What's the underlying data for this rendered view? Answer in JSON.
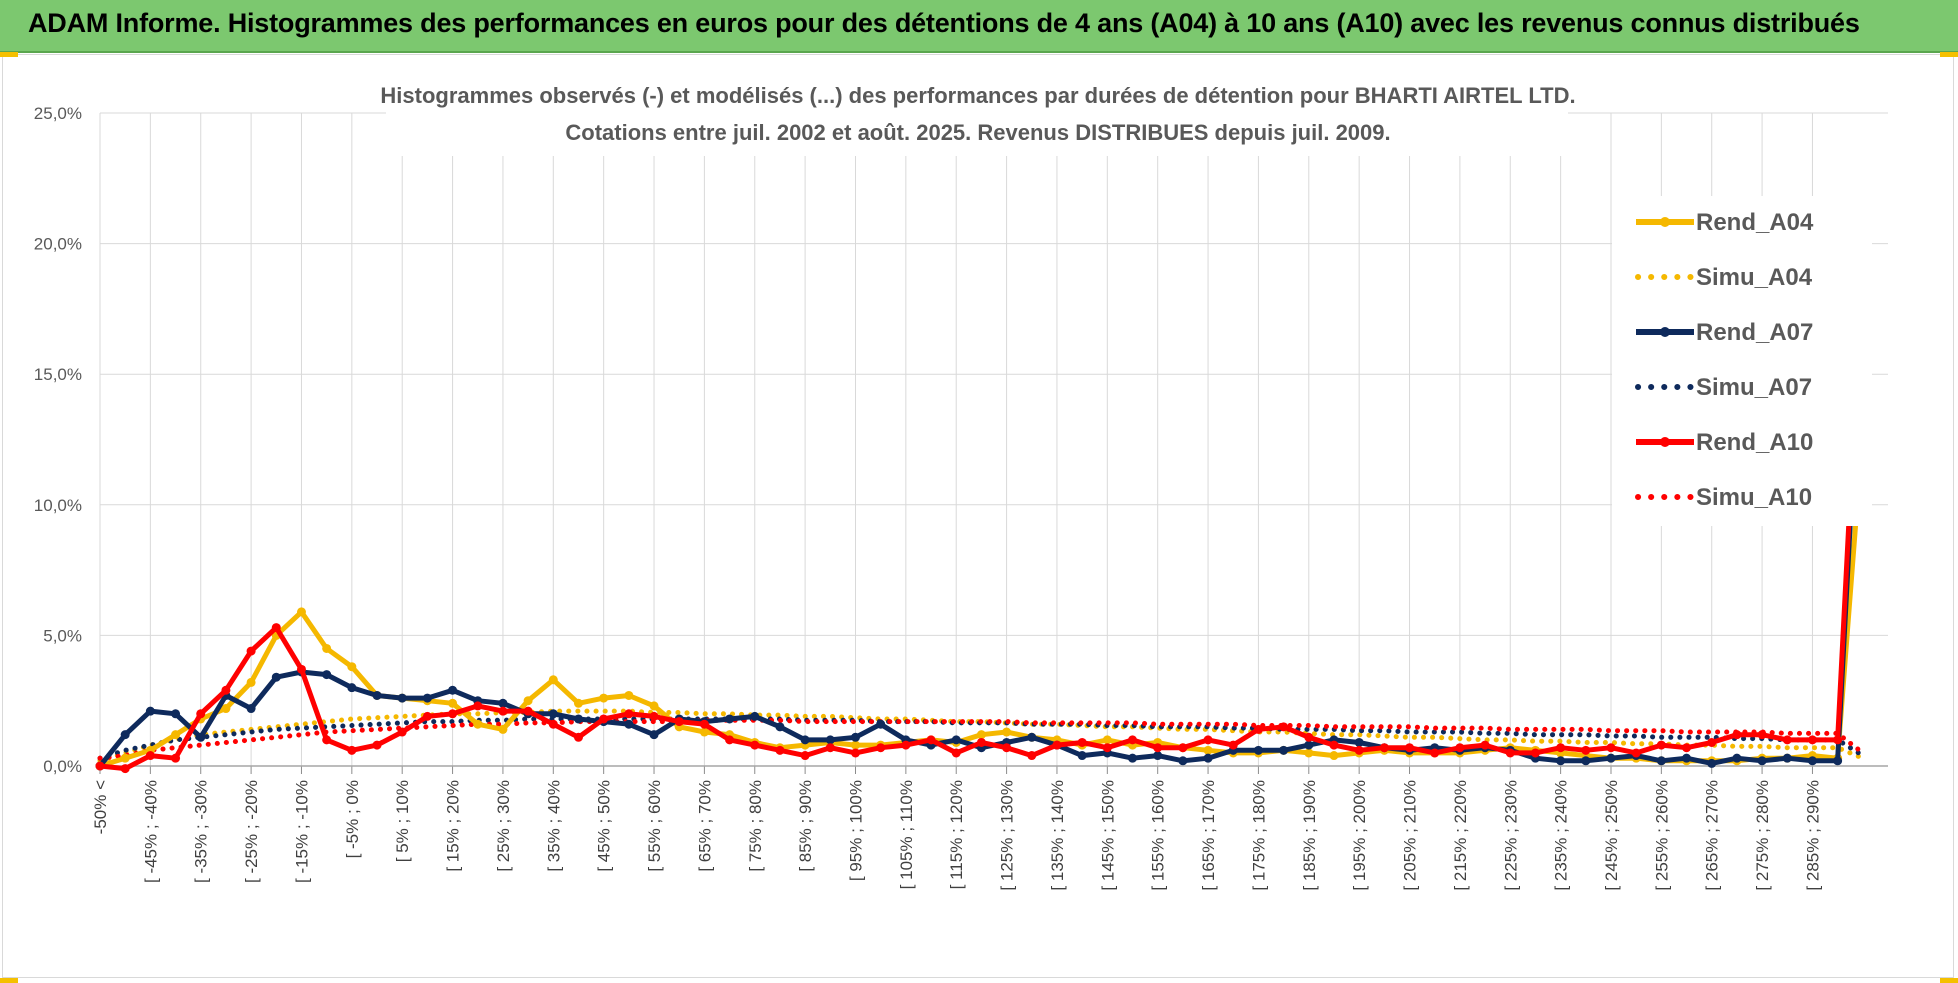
{
  "banner": {
    "title": "ADAM Informe. Histogrammes des performances en euros pour des détentions de 4 ans (A04) à 10 ans (A10) avec les revenus connus distribués"
  },
  "colors": {
    "banner_bg": "#7cc86f",
    "A04": "#f5b800",
    "A07": "#0e2a5c",
    "A10": "#ff0000",
    "grid": "#d9d9d9",
    "axis_text": "#595959"
  },
  "chart_data": {
    "type": "line",
    "title": "Histogrammes observés (-) et modélisés (...) des performances par durées de détention pour BHARTI AIRTEL LTD.",
    "subtitle": "Cotations entre juil. 2002 et août. 2025. Revenus DISTRIBUES depuis juil. 2009.",
    "xlabel": "",
    "ylabel": "",
    "ylim": [
      0,
      25
    ],
    "yticks": [
      "0,0%",
      "5,0%",
      "10,0%",
      "15,0%",
      "20,0%",
      "25,0%"
    ],
    "grid": true,
    "legend_position": "right",
    "x_labels": [
      "-50% <",
      "[ -45% ; -40%",
      "[ -35% ; -30%",
      "[ -25% ; -20%",
      "[ -15% ; -10%",
      "[ -5% ; 0%",
      "[ 5% ; 10%",
      "[ 15% ; 20%",
      "[ 25% ; 30%",
      "[ 35% ; 40%",
      "[ 45% ; 50%",
      "[ 55% ; 60%",
      "[ 65% ; 70%",
      "[ 75% ; 80%",
      "[ 85% ; 90%",
      "[ 95% ; 100%",
      "[ 105% ; 110%",
      "[ 115% ; 120%",
      "[ 125% ; 130%",
      "[ 135% ; 140%",
      "[ 145% ; 150%",
      "[ 155% ; 160%",
      "[ 165% ; 170%",
      "[ 175% ; 180%",
      "[ 185% ; 190%",
      "[ 195% ; 200%",
      "[ 205% ; 210%",
      "[ 215% ; 220%",
      "[ 225% ; 230%",
      "[ 235% ; 240%",
      "[ 245% ; 250%",
      "[ 255% ; 260%",
      "[ 265% ; 270%",
      "[ 275% ; 280%",
      "[ 285% ; 290%"
    ],
    "series": [
      {
        "name": "Rend_A04",
        "style": "solid",
        "color": "#f5b800",
        "values": [
          0.0,
          0.3,
          0.6,
          1.2,
          1.8,
          2.2,
          3.2,
          5.0,
          5.9,
          4.5,
          3.8,
          2.7,
          2.6,
          2.5,
          2.4,
          1.6,
          1.4,
          2.5,
          3.3,
          2.4,
          2.6,
          2.7,
          2.3,
          1.5,
          1.3,
          1.2,
          0.9,
          0.7,
          0.8,
          0.9,
          0.8,
          0.8,
          0.9,
          1.0,
          0.9,
          1.2,
          1.3,
          1.1,
          1.0,
          0.8,
          1.0,
          0.8,
          0.9,
          0.7,
          0.6,
          0.5,
          0.5,
          0.6,
          0.5,
          0.4,
          0.5,
          0.6,
          0.5,
          0.5,
          0.5,
          0.6,
          0.7,
          0.6,
          0.5,
          0.4,
          0.3,
          0.3,
          0.2,
          0.2,
          0.2,
          0.2,
          0.3,
          0.3,
          0.4,
          0.3,
          12.8
        ]
      },
      {
        "name": "Simu_A04",
        "style": "dotted",
        "color": "#f5b800",
        "values": [
          0.2,
          0.5,
          0.8,
          1.0,
          1.2,
          1.3,
          1.4,
          1.5,
          1.6,
          1.7,
          1.8,
          1.85,
          1.9,
          1.95,
          2.0,
          2.0,
          2.05,
          2.05,
          2.1,
          2.1,
          2.1,
          2.1,
          2.05,
          2.05,
          2.0,
          2.0,
          1.95,
          1.95,
          1.9,
          1.9,
          1.85,
          1.8,
          1.8,
          1.75,
          1.7,
          1.7,
          1.65,
          1.6,
          1.6,
          1.55,
          1.5,
          1.5,
          1.45,
          1.4,
          1.4,
          1.35,
          1.3,
          1.3,
          1.25,
          1.2,
          1.2,
          1.15,
          1.1,
          1.1,
          1.05,
          1.0,
          1.0,
          0.95,
          0.95,
          0.9,
          0.9,
          0.85,
          0.85,
          0.8,
          0.8,
          0.75,
          0.75,
          0.7,
          0.7,
          0.7,
          0.3
        ]
      },
      {
        "name": "Rend_A07",
        "style": "solid",
        "color": "#0e2a5c",
        "values": [
          0.0,
          1.2,
          2.1,
          2.0,
          1.1,
          2.7,
          2.2,
          3.4,
          3.6,
          3.5,
          3.0,
          2.7,
          2.6,
          2.6,
          2.9,
          2.5,
          2.4,
          2.0,
          2.0,
          1.8,
          1.7,
          1.6,
          1.2,
          1.8,
          1.7,
          1.8,
          1.9,
          1.5,
          1.0,
          1.0,
          1.1,
          1.6,
          1.0,
          0.8,
          1.0,
          0.7,
          0.9,
          1.1,
          0.8,
          0.4,
          0.5,
          0.3,
          0.4,
          0.2,
          0.3,
          0.6,
          0.6,
          0.6,
          0.8,
          1.0,
          0.9,
          0.7,
          0.6,
          0.7,
          0.6,
          0.7,
          0.6,
          0.3,
          0.2,
          0.2,
          0.3,
          0.4,
          0.2,
          0.3,
          0.1,
          0.3,
          0.2,
          0.3,
          0.2,
          0.2,
          18.3
        ]
      },
      {
        "name": "Simu_A07",
        "style": "dotted",
        "color": "#0e2a5c",
        "values": [
          0.3,
          0.6,
          0.8,
          1.0,
          1.1,
          1.2,
          1.3,
          1.4,
          1.45,
          1.5,
          1.55,
          1.6,
          1.65,
          1.7,
          1.7,
          1.75,
          1.75,
          1.8,
          1.8,
          1.8,
          1.8,
          1.8,
          1.8,
          1.8,
          1.8,
          1.8,
          1.8,
          1.8,
          1.75,
          1.75,
          1.75,
          1.7,
          1.7,
          1.7,
          1.65,
          1.65,
          1.65,
          1.6,
          1.6,
          1.6,
          1.55,
          1.55,
          1.5,
          1.5,
          1.5,
          1.45,
          1.45,
          1.4,
          1.4,
          1.4,
          1.35,
          1.35,
          1.3,
          1.3,
          1.3,
          1.25,
          1.25,
          1.2,
          1.2,
          1.2,
          1.15,
          1.15,
          1.1,
          1.1,
          1.1,
          1.05,
          1.05,
          1.0,
          1.0,
          1.0,
          0.4
        ]
      },
      {
        "name": "Rend_A10",
        "style": "solid",
        "color": "#ff0000",
        "values": [
          0.0,
          -0.1,
          0.4,
          0.3,
          2.0,
          2.9,
          4.4,
          5.3,
          3.7,
          1.0,
          0.6,
          0.8,
          1.3,
          1.9,
          2.0,
          2.3,
          2.1,
          2.1,
          1.6,
          1.1,
          1.8,
          2.0,
          1.9,
          1.7,
          1.6,
          1.0,
          0.8,
          0.6,
          0.4,
          0.7,
          0.5,
          0.7,
          0.8,
          1.0,
          0.5,
          0.9,
          0.7,
          0.4,
          0.8,
          0.9,
          0.7,
          1.0,
          0.7,
          0.7,
          1.0,
          0.8,
          1.4,
          1.5,
          1.1,
          0.8,
          0.6,
          0.7,
          0.7,
          0.5,
          0.7,
          0.8,
          0.5,
          0.5,
          0.7,
          0.6,
          0.7,
          0.5,
          0.8,
          0.7,
          0.9,
          1.2,
          1.2,
          1.0,
          1.0,
          1.0,
          19.6
        ]
      },
      {
        "name": "Simu_A10",
        "style": "dotted",
        "color": "#ff0000",
        "values": [
          0.3,
          0.4,
          0.6,
          0.7,
          0.8,
          0.9,
          1.0,
          1.1,
          1.2,
          1.3,
          1.35,
          1.4,
          1.45,
          1.5,
          1.55,
          1.6,
          1.6,
          1.65,
          1.65,
          1.7,
          1.7,
          1.7,
          1.7,
          1.7,
          1.75,
          1.75,
          1.75,
          1.75,
          1.7,
          1.7,
          1.7,
          1.7,
          1.7,
          1.7,
          1.7,
          1.7,
          1.7,
          1.65,
          1.65,
          1.65,
          1.65,
          1.65,
          1.6,
          1.6,
          1.6,
          1.6,
          1.55,
          1.55,
          1.55,
          1.5,
          1.5,
          1.5,
          1.5,
          1.45,
          1.45,
          1.45,
          1.4,
          1.4,
          1.4,
          1.4,
          1.35,
          1.35,
          1.35,
          1.3,
          1.3,
          1.3,
          1.3,
          1.25,
          1.25,
          1.25,
          0.5
        ]
      }
    ]
  }
}
